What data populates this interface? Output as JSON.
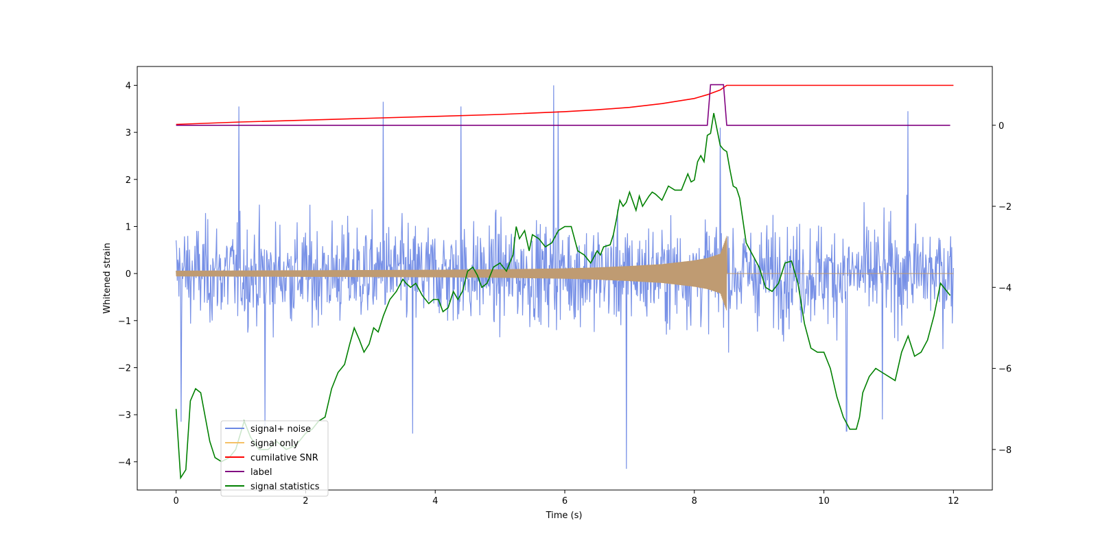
{
  "chart_data": {
    "type": "line",
    "xlabel": "Time (s)",
    "ylabel": "Whitened strain",
    "xlim": [
      -0.6,
      12.6
    ],
    "ylim": [
      -4.6,
      4.4
    ],
    "ylim_right": [
      -9.0,
      1.45
    ],
    "x_ticks": [
      0,
      2,
      4,
      6,
      8,
      10,
      12
    ],
    "y_ticks": [
      -4,
      -3,
      -2,
      -1,
      0,
      1,
      2,
      3,
      4
    ],
    "y_ticks_right": [
      -8,
      -6,
      -4,
      -2,
      0
    ],
    "grid": false,
    "legend_position": "lower-left",
    "colors": {
      "noise": "#6b87e4",
      "signal": "#f5c065",
      "snr": "#ff0000",
      "label": "#800080",
      "stats": "#008000",
      "overlap": "#bf9b72"
    },
    "series": [
      {
        "name": "signal+ noise",
        "axis": "left",
        "description_of_values": "whitened strain noise band",
        "x_range": [
          0,
          12
        ],
        "band_upper_typical": 1.9,
        "band_lower_typical": -1.9,
        "peak_values": [
          {
            "x": 0.97,
            "y": 3.55
          },
          {
            "x": 3.2,
            "y": 3.65
          },
          {
            "x": 4.4,
            "y": 3.55
          },
          {
            "x": 5.83,
            "y": 4.0
          },
          {
            "x": 5.9,
            "y": 3.45
          },
          {
            "x": 8.4,
            "y": 3.1
          },
          {
            "x": 11.3,
            "y": 3.45
          },
          {
            "x": 0.08,
            "y": -3.15
          },
          {
            "x": 1.37,
            "y": -3.3
          },
          {
            "x": 3.65,
            "y": -3.4
          },
          {
            "x": 6.95,
            "y": -4.15
          },
          {
            "x": 10.35,
            "y": -3.35
          },
          {
            "x": 10.9,
            "y": -3.1
          }
        ]
      },
      {
        "name": "signal only",
        "axis": "left",
        "x": [
          0,
          1,
          2,
          3,
          4,
          5,
          6,
          6.5,
          7,
          7.5,
          8,
          8.2,
          8.4,
          8.5
        ],
        "amplitude": [
          0.06,
          0.065,
          0.07,
          0.075,
          0.08,
          0.09,
          0.11,
          0.13,
          0.16,
          0.2,
          0.28,
          0.33,
          0.42,
          0.8
        ]
      },
      {
        "name": "cumilative SNR",
        "axis": "left",
        "x": [
          0,
          1,
          2,
          3,
          4,
          5,
          6,
          6.5,
          7,
          7.5,
          8,
          8.2,
          8.4,
          8.5,
          9,
          10,
          11,
          12
        ],
        "values": [
          3.17,
          3.22,
          3.26,
          3.3,
          3.34,
          3.38,
          3.44,
          3.48,
          3.53,
          3.61,
          3.72,
          3.8,
          3.9,
          4.0,
          4.0,
          4.0,
          4.0,
          4.0
        ]
      },
      {
        "name": "label",
        "axis": "right",
        "x": [
          0,
          8.2,
          8.25,
          8.45,
          8.5,
          11.95
        ],
        "values": [
          0,
          0,
          1,
          1,
          0,
          0
        ]
      },
      {
        "name": "signal statistics",
        "axis": "right",
        "x": [
          0,
          0.07,
          0.15,
          0.22,
          0.3,
          0.38,
          0.45,
          0.52,
          0.6,
          0.7,
          0.82,
          0.92,
          1.05,
          1.15,
          1.28,
          1.42,
          1.55,
          1.7,
          1.85,
          2.0,
          2.1,
          2.2,
          2.3,
          2.4,
          2.5,
          2.6,
          2.68,
          2.75,
          2.83,
          2.9,
          2.98,
          3.05,
          3.12,
          3.2,
          3.3,
          3.4,
          3.5,
          3.55,
          3.62,
          3.7,
          3.8,
          3.9,
          3.97,
          4.05,
          4.12,
          4.2,
          4.28,
          4.35,
          4.42,
          4.5,
          4.58,
          4.65,
          4.72,
          4.8,
          4.9,
          5.0,
          5.1,
          5.2,
          5.25,
          5.3,
          5.38,
          5.45,
          5.5,
          5.6,
          5.7,
          5.8,
          5.9,
          6.0,
          6.1,
          6.2,
          6.3,
          6.4,
          6.5,
          6.55,
          6.6,
          6.7,
          6.75,
          6.8,
          6.85,
          6.9,
          6.95,
          7.0,
          7.1,
          7.15,
          7.2,
          7.3,
          7.35,
          7.4,
          7.5,
          7.6,
          7.7,
          7.8,
          7.9,
          7.95,
          8.0,
          8.05,
          8.1,
          8.15,
          8.2,
          8.25,
          8.3,
          8.35,
          8.4,
          8.45,
          8.5,
          8.55,
          8.6,
          8.65,
          8.7,
          8.8,
          8.9,
          9.0,
          9.1,
          9.2,
          9.3,
          9.4,
          9.5,
          9.6,
          9.7,
          9.8,
          9.9,
          10.0,
          10.1,
          10.2,
          10.3,
          10.4,
          10.5,
          10.55,
          10.6,
          10.7,
          10.8,
          10.9,
          11.0,
          11.1,
          11.2,
          11.3,
          11.4,
          11.5,
          11.6,
          11.7,
          11.8,
          11.9,
          11.95
        ],
        "values": [
          -7.0,
          -8.7,
          -8.5,
          -6.8,
          -6.5,
          -6.6,
          -7.2,
          -7.8,
          -8.2,
          -8.3,
          -8.2,
          -8.0,
          -7.3,
          -7.7,
          -8.0,
          -8.0,
          -7.8,
          -8.0,
          -7.9,
          -7.6,
          -7.5,
          -7.3,
          -7.2,
          -6.5,
          -6.1,
          -5.9,
          -5.4,
          -5.0,
          -5.3,
          -5.6,
          -5.4,
          -5.0,
          -5.1,
          -4.7,
          -4.3,
          -4.1,
          -3.8,
          -3.9,
          -4.0,
          -3.9,
          -4.2,
          -4.4,
          -4.3,
          -4.3,
          -4.6,
          -4.5,
          -4.1,
          -4.3,
          -4.1,
          -3.6,
          -3.5,
          -3.7,
          -4.0,
          -3.9,
          -3.5,
          -3.4,
          -3.6,
          -3.2,
          -2.5,
          -2.8,
          -2.6,
          -3.1,
          -2.7,
          -2.8,
          -3.0,
          -2.9,
          -2.6,
          -2.5,
          -2.5,
          -3.1,
          -3.2,
          -3.4,
          -3.1,
          -3.2,
          -3.0,
          -2.95,
          -2.7,
          -2.3,
          -1.85,
          -2.0,
          -1.9,
          -1.65,
          -2.1,
          -1.75,
          -2.0,
          -1.75,
          -1.65,
          -1.7,
          -1.85,
          -1.5,
          -1.6,
          -1.6,
          -1.2,
          -1.4,
          -1.35,
          -0.9,
          -0.75,
          -0.9,
          -0.25,
          -0.2,
          0.3,
          -0.1,
          -0.5,
          -0.6,
          -0.65,
          -1.1,
          -1.5,
          -1.55,
          -1.8,
          -2.9,
          -3.2,
          -3.5,
          -4.0,
          -4.1,
          -3.9,
          -3.4,
          -3.35,
          -3.9,
          -4.9,
          -5.5,
          -5.6,
          -5.6,
          -6.0,
          -6.7,
          -7.2,
          -7.5,
          -7.5,
          -7.2,
          -6.6,
          -6.2,
          -6.0,
          -6.1,
          -6.2,
          -6.3,
          -5.6,
          -5.2,
          -5.7,
          -5.6,
          -5.3,
          -4.7,
          -3.9,
          -4.1,
          -4.2
        ]
      }
    ]
  },
  "legend": {
    "items": [
      {
        "label": "signal+ noise",
        "color": "#6b87e4"
      },
      {
        "label": "signal only",
        "color": "#f5c065"
      },
      {
        "label": "cumilative SNR",
        "color": "#ff0000"
      },
      {
        "label": "label",
        "color": "#800080"
      },
      {
        "label": "signal statistics",
        "color": "#008000"
      }
    ]
  }
}
